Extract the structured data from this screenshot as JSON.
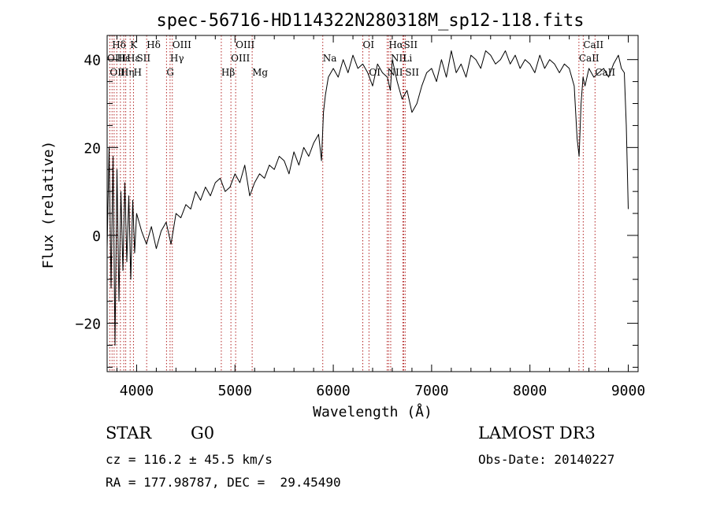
{
  "chart_data": {
    "type": "line",
    "title": "spec-56716-HD114322N280318M_sp12-118.fits",
    "xlabel": "Wavelength (Å)",
    "ylabel": "Flux (relative)",
    "xlim": [
      3700,
      9100
    ],
    "ylim": [
      -31,
      45.5
    ],
    "grid": false,
    "x_ticks": [
      "4000",
      "5000",
      "6000",
      "7000",
      "8000",
      "9000"
    ],
    "x_tick_values": [
      4000,
      5000,
      6000,
      7000,
      8000,
      9000
    ],
    "y_ticks": [
      "−20",
      "0",
      "20",
      "40"
    ],
    "y_tick_values": [
      -20,
      0,
      20,
      40
    ],
    "series": [
      {
        "x": [
          3700,
          3720,
          3740,
          3760,
          3780,
          3800,
          3820,
          3840,
          3860,
          3880,
          3900,
          3920,
          3940,
          3960,
          3980,
          4000,
          4050,
          4100,
          4150,
          4200,
          4250,
          4300,
          4350,
          4400,
          4450,
          4500,
          4550,
          4600,
          4650,
          4700,
          4750,
          4800,
          4850,
          4900,
          4950,
          5000,
          5050,
          5100,
          5150,
          5200,
          5250,
          5300,
          5350,
          5400,
          5450,
          5500,
          5550,
          5600,
          5650,
          5700,
          5750,
          5800,
          5850,
          5880,
          5900,
          5920,
          5950,
          6000,
          6050,
          6100,
          6150,
          6200,
          6250,
          6300,
          6350,
          6400,
          6450,
          6500,
          6550,
          6580,
          6600,
          6650,
          6700,
          6750,
          6800,
          6850,
          6900,
          6950,
          7000,
          7050,
          7100,
          7150,
          7200,
          7250,
          7300,
          7350,
          7400,
          7450,
          7500,
          7550,
          7600,
          7650,
          7700,
          7750,
          7800,
          7850,
          7900,
          7950,
          8000,
          8050,
          8100,
          8150,
          8200,
          8250,
          8300,
          8350,
          8400,
          8450,
          8480,
          8500,
          8520,
          8540,
          8560,
          8600,
          8650,
          8700,
          8750,
          8800,
          8850,
          8900,
          8930,
          8960,
          8980,
          9000
        ],
        "y": [
          -3,
          20,
          -12,
          18,
          -25,
          15,
          -15,
          10,
          -8,
          12,
          -6,
          9,
          -10,
          8,
          -4,
          5,
          1,
          -2,
          2,
          -3,
          1,
          3,
          -2,
          5,
          4,
          7,
          6,
          10,
          8,
          11,
          9,
          12,
          13,
          10,
          11,
          14,
          12,
          16,
          9,
          12,
          14,
          13,
          16,
          15,
          18,
          17,
          14,
          19,
          16,
          20,
          18,
          21,
          23,
          17,
          28,
          32,
          36,
          38,
          36,
          40,
          37,
          41,
          38,
          39,
          37,
          34,
          39,
          37,
          36,
          33,
          40,
          35,
          31,
          33,
          28,
          30,
          34,
          37,
          38,
          35,
          40,
          36,
          42,
          37,
          39,
          36,
          41,
          40,
          38,
          42,
          41,
          39,
          40,
          42,
          39,
          41,
          38,
          40,
          39,
          37,
          41,
          38,
          40,
          39,
          37,
          39,
          38,
          34,
          22,
          18,
          30,
          36,
          34,
          38,
          36,
          37,
          38,
          36,
          39,
          41,
          38,
          37,
          25,
          6
        ]
      }
    ],
    "line_labels": [
      {
        "label": "Hδ",
        "x": 3750,
        "row": 0
      },
      {
        "label": "OIII",
        "x": 3700,
        "row": 1
      },
      {
        "label": "OII",
        "x": 3727,
        "row": 2
      },
      {
        "label": "Hε",
        "x": 3800,
        "row": 1
      },
      {
        "label": "Hη",
        "x": 3835,
        "row": 2
      },
      {
        "label": "K",
        "x": 3934,
        "row": 0
      },
      {
        "label": "Hε",
        "x": 3900,
        "row": 1
      },
      {
        "label": "SII",
        "x": 4000,
        "row": 1
      },
      {
        "label": "H",
        "x": 3968,
        "row": 2
      },
      {
        "label": "Hδ",
        "x": 4102,
        "row": 0
      },
      {
        "label": "OIII",
        "x": 4363,
        "row": 0
      },
      {
        "label": "Hγ",
        "x": 4340,
        "row": 1
      },
      {
        "label": "G",
        "x": 4304,
        "row": 2
      },
      {
        "label": "OIII",
        "x": 5007,
        "row": 0
      },
      {
        "label": "OIII",
        "x": 4959,
        "row": 1
      },
      {
        "label": "Hβ",
        "x": 4861,
        "row": 2
      },
      {
        "label": "Mg",
        "x": 5175,
        "row": 2
      },
      {
        "label": "Na",
        "x": 5893,
        "row": 1
      },
      {
        "label": "OI",
        "x": 6300,
        "row": 0
      },
      {
        "label": "OI",
        "x": 6363,
        "row": 2
      },
      {
        "label": "Hα",
        "x": 6563,
        "row": 0
      },
      {
        "label": "SII",
        "x": 6716,
        "row": 0
      },
      {
        "label": "NII",
        "x": 6584,
        "row": 1
      },
      {
        "label": "Li",
        "x": 6708,
        "row": 1
      },
      {
        "label": "NII",
        "x": 6548,
        "row": 2
      },
      {
        "label": "SII",
        "x": 6731,
        "row": 2
      },
      {
        "label": "CaII",
        "x": 8542,
        "row": 0
      },
      {
        "label": "CaII",
        "x": 8498,
        "row": 1
      },
      {
        "label": "CaII",
        "x": 8662,
        "row": 2
      }
    ],
    "line_markers": [
      3727,
      3750,
      3771,
      3798,
      3835,
      3869,
      3889,
      3934,
      3968,
      4102,
      4304,
      4340,
      4363,
      4861,
      4959,
      5007,
      5175,
      5893,
      6300,
      6363,
      6548,
      6563,
      6584,
      6708,
      6716,
      6731,
      8498,
      8542,
      8662
    ],
    "line_color": "#000000",
    "marker_color": "#b22222"
  },
  "info": {
    "class_label": "STAR",
    "subclass": "G0",
    "survey": "LAMOST DR3",
    "cz_line": "cz = 116.2 ± 45.5 km/s",
    "obs_date_line": "Obs-Date: 20140227",
    "coords_line": "RA = 177.98787, DEC =  29.45490"
  }
}
